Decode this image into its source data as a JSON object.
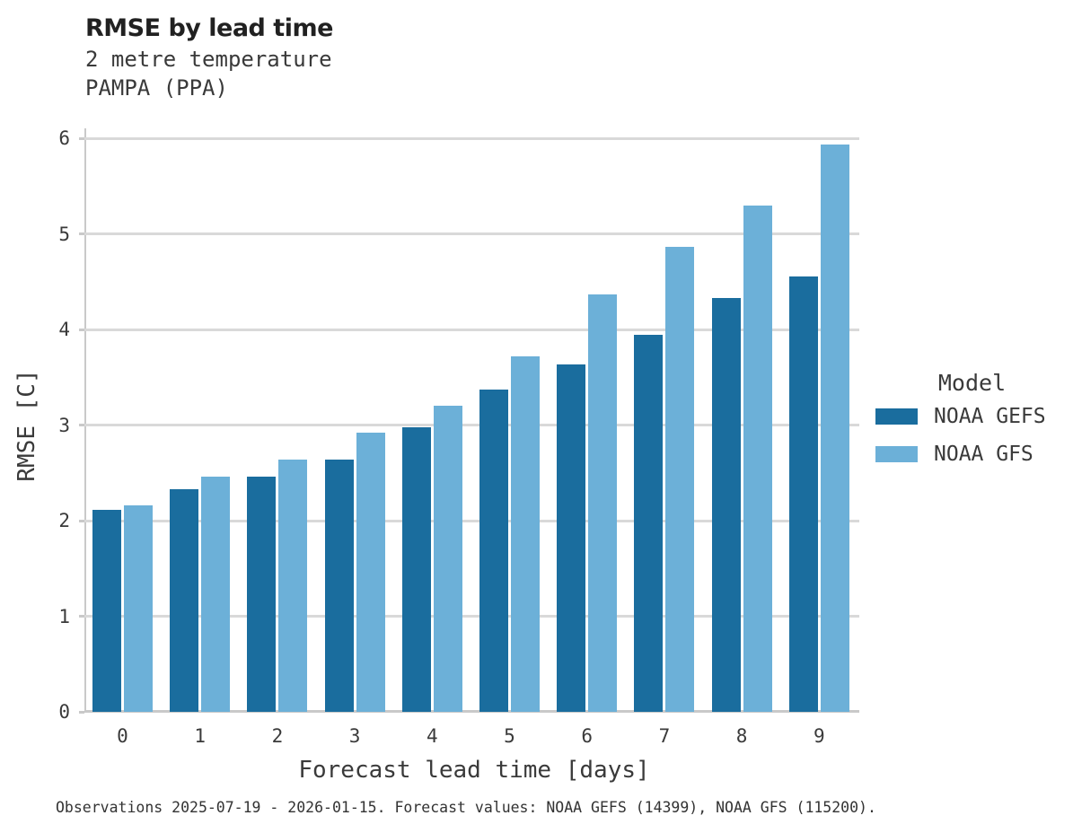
{
  "header": {
    "title": "RMSE by lead time",
    "subtitle1": "2 metre temperature",
    "subtitle2": "PAMPA (PPA)"
  },
  "chart_data": {
    "type": "bar",
    "title": "RMSE by lead time",
    "subtitle": [
      "2 metre temperature",
      "PAMPA (PPA)"
    ],
    "categories": [
      "0",
      "1",
      "2",
      "3",
      "4",
      "5",
      "6",
      "7",
      "8",
      "9"
    ],
    "series": [
      {
        "name": "NOAA GEFS",
        "color": "#1a6d9e",
        "values": [
          2.11,
          2.33,
          2.46,
          2.64,
          2.98,
          3.37,
          3.63,
          3.94,
          4.33,
          4.55
        ]
      },
      {
        "name": "NOAA GFS",
        "color": "#6cb0d8",
        "values": [
          2.16,
          2.46,
          2.64,
          2.92,
          3.2,
          3.72,
          4.37,
          4.86,
          5.3,
          5.93
        ]
      }
    ],
    "xlabel": "Forecast lead time [days]",
    "ylabel": "RMSE [C]",
    "ylim": [
      0,
      6.1
    ],
    "yticks": [
      0,
      1,
      2,
      3,
      4,
      5,
      6
    ],
    "grid": "horizontal",
    "legend_title": "Model",
    "legend_position": "right"
  },
  "legend": {
    "title": "Model",
    "items": [
      {
        "label": "NOAA GEFS",
        "color": "#1a6d9e"
      },
      {
        "label": "NOAA GFS",
        "color": "#6cb0d8"
      }
    ]
  },
  "footer": {
    "note": "Observations 2025-07-19 - 2026-01-15. Forecast values: NOAA GEFS (14399), NOAA GFS (115200)."
  },
  "colors": {
    "grid": "#d9d9d9",
    "axis": "#c9c9c9",
    "title_text": "#212121",
    "body_text": "#3a3a3a"
  }
}
